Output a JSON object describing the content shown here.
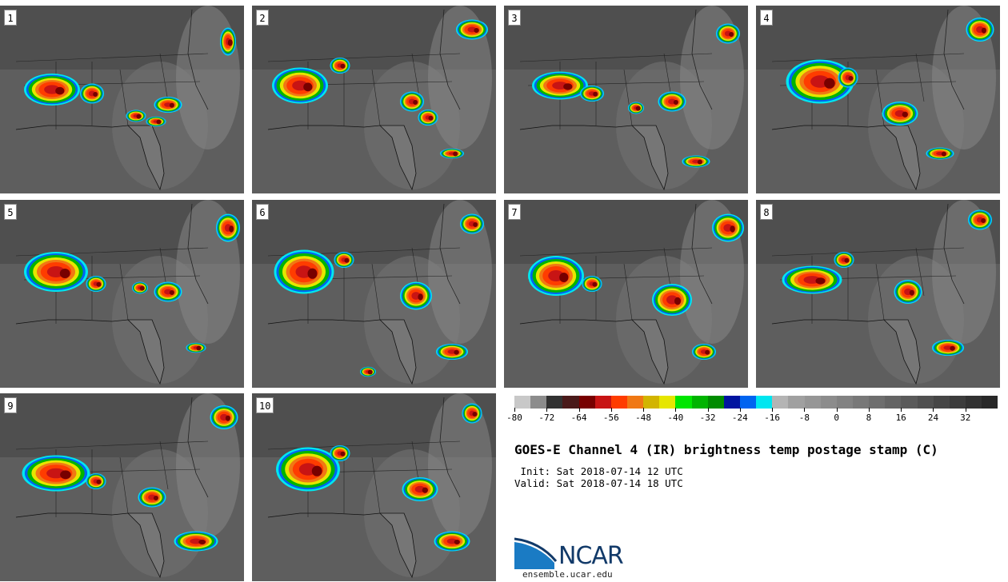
{
  "panels": [
    {
      "label": "1"
    },
    {
      "label": "2"
    },
    {
      "label": "3"
    },
    {
      "label": "4"
    },
    {
      "label": "5"
    },
    {
      "label": "6"
    },
    {
      "label": "7"
    },
    {
      "label": "8"
    },
    {
      "label": "9"
    },
    {
      "label": "10"
    }
  ],
  "colorbar": {
    "colors": [
      "#c8c8c8",
      "#8c8c8c",
      "#323232",
      "#4a1a1a",
      "#780000",
      "#c81414",
      "#ff3c00",
      "#f07814",
      "#d2b400",
      "#e6e600",
      "#00e600",
      "#00b400",
      "#008c00",
      "#0014a0",
      "#0064f0",
      "#00e6f0",
      "#b4b4b4",
      "#a0a0a0",
      "#969696",
      "#8c8c8c",
      "#828282",
      "#787878",
      "#6e6e6e",
      "#646464",
      "#5a5a5a",
      "#505050",
      "#464646",
      "#3c3c3c",
      "#323232",
      "#282828"
    ],
    "ticks": [
      "-80",
      "-72",
      "-64",
      "-56",
      "-48",
      "-40",
      "-32",
      "-24",
      "-16",
      "-8",
      "0",
      "8",
      "16",
      "24",
      "32"
    ]
  },
  "title": "GOES-E Channel 4 (IR) brightness temp postage stamp (C)",
  "init": " Init: Sat 2018-07-14 12 UTC",
  "valid": "Valid: Sat 2018-07-14 18 UTC",
  "logo": {
    "name": "NCAR",
    "url": "ensemble.ucar.edu"
  }
}
